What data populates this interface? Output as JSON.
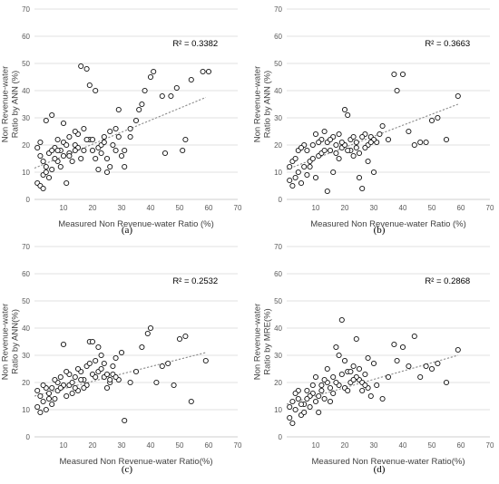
{
  "chart_data": [
    {
      "type": "scatter",
      "panel_label": "(a)",
      "r2_text": "R² = 0.3382",
      "xlabel": "Measured Non Revenue-water Ratio (%)",
      "ylabel_line1": "Non Revenue-water",
      "ylabel_line2": "Ratio by ANN (%)",
      "xlim": [
        0,
        70
      ],
      "ylim": [
        0,
        70
      ],
      "xticks": [
        10,
        20,
        30,
        40,
        50,
        60,
        70
      ],
      "yticks": [
        0,
        10,
        20,
        30,
        40,
        50,
        60,
        70
      ],
      "grid": "horizontal",
      "trend": {
        "x": [
          0,
          59
        ],
        "y": [
          11.5,
          37.5
        ]
      },
      "points": [
        [
          1,
          6
        ],
        [
          2,
          5
        ],
        [
          3,
          4
        ],
        [
          3,
          9
        ],
        [
          4,
          12
        ],
        [
          5,
          17
        ],
        [
          6,
          11
        ],
        [
          7,
          19
        ],
        [
          8,
          14
        ],
        [
          9,
          18
        ],
        [
          10,
          21
        ],
        [
          11,
          6
        ],
        [
          12,
          17
        ],
        [
          14,
          20
        ],
        [
          15,
          24
        ],
        [
          16,
          49
        ],
        [
          18,
          48
        ],
        [
          19,
          42
        ],
        [
          21,
          40
        ],
        [
          22,
          19
        ],
        [
          23,
          17
        ],
        [
          25,
          10
        ],
        [
          26,
          25
        ],
        [
          28,
          26
        ],
        [
          29,
          33
        ],
        [
          31,
          12
        ],
        [
          33,
          23
        ],
        [
          35,
          29
        ],
        [
          37,
          35
        ],
        [
          38,
          40
        ],
        [
          40,
          45
        ],
        [
          41,
          47
        ],
        [
          44,
          38
        ],
        [
          45,
          17
        ],
        [
          47,
          38
        ],
        [
          49,
          41
        ],
        [
          51,
          18
        ],
        [
          52,
          22
        ],
        [
          54,
          44
        ],
        [
          58,
          47
        ],
        [
          60,
          47
        ],
        [
          2,
          21
        ],
        [
          4,
          29
        ],
        [
          6,
          31
        ],
        [
          8,
          18
        ],
        [
          10,
          28
        ],
        [
          12,
          16
        ],
        [
          14,
          25
        ],
        [
          17,
          18
        ],
        [
          19,
          22
        ],
        [
          21,
          15
        ],
        [
          23,
          20
        ],
        [
          24,
          21
        ],
        [
          27,
          20
        ],
        [
          29,
          23
        ],
        [
          31,
          18
        ],
        [
          33,
          26
        ],
        [
          36,
          33
        ],
        [
          1,
          19
        ],
        [
          3,
          14
        ],
        [
          5,
          8
        ],
        [
          7,
          15
        ],
        [
          9,
          12
        ],
        [
          11,
          20
        ],
        [
          13,
          14
        ],
        [
          15,
          19
        ],
        [
          17,
          26
        ],
        [
          20,
          22
        ],
        [
          22,
          11
        ],
        [
          25,
          15
        ],
        [
          28,
          18
        ],
        [
          2,
          16
        ],
        [
          4,
          10
        ],
        [
          6,
          18
        ],
        [
          8,
          22
        ],
        [
          10,
          16
        ],
        [
          12,
          23
        ],
        [
          14,
          18
        ],
        [
          16,
          15
        ],
        [
          18,
          22
        ],
        [
          20,
          18
        ],
        [
          24,
          23
        ],
        [
          26,
          12
        ],
        [
          30,
          16
        ]
      ]
    },
    {
      "type": "scatter",
      "panel_label": "(b)",
      "r2_text": "R² = 0.3663",
      "xlabel": "Measured Non Revenue-water Ratio (%)",
      "ylabel_line1": "Non Revenue-water",
      "ylabel_line2": "Ratio by ANN (%)",
      "xlim": [
        0,
        70
      ],
      "ylim": [
        0,
        70
      ],
      "xticks": [
        10,
        20,
        30,
        40,
        50,
        60,
        70
      ],
      "yticks": [
        0,
        10,
        20,
        30,
        40,
        50,
        60,
        70
      ],
      "grid": "horizontal",
      "trend": {
        "x": [
          0,
          59
        ],
        "y": [
          11,
          35
        ]
      },
      "points": [
        [
          1,
          7
        ],
        [
          2,
          5
        ],
        [
          3,
          8
        ],
        [
          4,
          10
        ],
        [
          5,
          6
        ],
        [
          6,
          12
        ],
        [
          7,
          18
        ],
        [
          8,
          14
        ],
        [
          9,
          20
        ],
        [
          10,
          8
        ],
        [
          11,
          16
        ],
        [
          12,
          22
        ],
        [
          13,
          25
        ],
        [
          14,
          3
        ],
        [
          15,
          18
        ],
        [
          16,
          10
        ],
        [
          17,
          20
        ],
        [
          18,
          24
        ],
        [
          19,
          19
        ],
        [
          20,
          33
        ],
        [
          21,
          31
        ],
        [
          22,
          18
        ],
        [
          23,
          16
        ],
        [
          24,
          21
        ],
        [
          25,
          8
        ],
        [
          26,
          4
        ],
        [
          27,
          24
        ],
        [
          28,
          14
        ],
        [
          29,
          23
        ],
        [
          30,
          10
        ],
        [
          31,
          21
        ],
        [
          33,
          27
        ],
        [
          35,
          22
        ],
        [
          37,
          46
        ],
        [
          38,
          40
        ],
        [
          40,
          46
        ],
        [
          42,
          25
        ],
        [
          44,
          20
        ],
        [
          46,
          21
        ],
        [
          48,
          21
        ],
        [
          50,
          29
        ],
        [
          52,
          30
        ],
        [
          55,
          22
        ],
        [
          59,
          38
        ],
        [
          2,
          14
        ],
        [
          4,
          18
        ],
        [
          6,
          20
        ],
        [
          8,
          12
        ],
        [
          10,
          24
        ],
        [
          12,
          17
        ],
        [
          14,
          21
        ],
        [
          16,
          23
        ],
        [
          18,
          15
        ],
        [
          20,
          20
        ],
        [
          22,
          22
        ],
        [
          24,
          19
        ],
        [
          26,
          23
        ],
        [
          28,
          20
        ],
        [
          30,
          22
        ],
        [
          32,
          24
        ],
        [
          1,
          12
        ],
        [
          3,
          15
        ],
        [
          5,
          19
        ],
        [
          7,
          9
        ],
        [
          9,
          15
        ],
        [
          11,
          21
        ],
        [
          13,
          18
        ],
        [
          15,
          22
        ],
        [
          17,
          17
        ],
        [
          19,
          21
        ],
        [
          21,
          18
        ],
        [
          23,
          23
        ],
        [
          25,
          17
        ],
        [
          27,
          19
        ],
        [
          29,
          21
        ]
      ]
    },
    {
      "type": "scatter",
      "panel_label": "(c)",
      "r2_text": "R² = 0.2532",
      "xlabel": "Measured Non Revenue-water Ratio(%)",
      "ylabel_line1": "Non Revenue-water",
      "ylabel_line2": "Ratio by ANN(%)",
      "xlim": [
        0,
        70
      ],
      "ylim": [
        0,
        70
      ],
      "xticks": [
        10,
        20,
        30,
        40,
        50,
        60,
        70
      ],
      "yticks": [
        0,
        10,
        20,
        30,
        40,
        50,
        60,
        70
      ],
      "grid": "horizontal",
      "trend": {
        "x": [
          0,
          59
        ],
        "y": [
          15,
          31
        ]
      },
      "points": [
        [
          1,
          11
        ],
        [
          2,
          9
        ],
        [
          3,
          13
        ],
        [
          4,
          10
        ],
        [
          5,
          16
        ],
        [
          6,
          18
        ],
        [
          7,
          14
        ],
        [
          8,
          17
        ],
        [
          9,
          22
        ],
        [
          10,
          34
        ],
        [
          11,
          15
        ],
        [
          12,
          19
        ],
        [
          13,
          20
        ],
        [
          14,
          22
        ],
        [
          15,
          17
        ],
        [
          16,
          24
        ],
        [
          17,
          21
        ],
        [
          18,
          26
        ],
        [
          19,
          35
        ],
        [
          20,
          35
        ],
        [
          21,
          28
        ],
        [
          22,
          33
        ],
        [
          23,
          30
        ],
        [
          24,
          22
        ],
        [
          25,
          18
        ],
        [
          26,
          20
        ],
        [
          27,
          23
        ],
        [
          28,
          29
        ],
        [
          29,
          21
        ],
        [
          30,
          31
        ],
        [
          31,
          6
        ],
        [
          33,
          20
        ],
        [
          35,
          24
        ],
        [
          37,
          33
        ],
        [
          39,
          38
        ],
        [
          40,
          40
        ],
        [
          42,
          20
        ],
        [
          44,
          26
        ],
        [
          46,
          27
        ],
        [
          48,
          19
        ],
        [
          50,
          36
        ],
        [
          52,
          37
        ],
        [
          54,
          13
        ],
        [
          59,
          28
        ],
        [
          2,
          15
        ],
        [
          4,
          18
        ],
        [
          6,
          12
        ],
        [
          8,
          20
        ],
        [
          10,
          19
        ],
        [
          12,
          23
        ],
        [
          14,
          18
        ],
        [
          16,
          21
        ],
        [
          18,
          19
        ],
        [
          20,
          23
        ],
        [
          22,
          24
        ],
        [
          24,
          27
        ],
        [
          26,
          21
        ],
        [
          28,
          22
        ],
        [
          1,
          17
        ],
        [
          3,
          19
        ],
        [
          5,
          14
        ],
        [
          7,
          21
        ],
        [
          9,
          18
        ],
        [
          11,
          24
        ],
        [
          13,
          16
        ],
        [
          15,
          25
        ],
        [
          17,
          18
        ],
        [
          19,
          27
        ],
        [
          21,
          22
        ],
        [
          23,
          25
        ],
        [
          25,
          23
        ],
        [
          27,
          26
        ]
      ]
    },
    {
      "type": "scatter",
      "panel_label": "(d)",
      "r2_text": "R² = 0.2868",
      "xlabel": "Measured Non Revenue-water Ratio(%)",
      "ylabel_line1": "Non Revenue-water",
      "ylabel_line2": "Ratio by MRE(%)",
      "xlim": [
        0,
        70
      ],
      "ylim": [
        0,
        70
      ],
      "xticks": [
        10,
        20,
        30,
        40,
        50,
        60,
        70
      ],
      "yticks": [
        0,
        10,
        20,
        30,
        40,
        50,
        60,
        70
      ],
      "grid": "horizontal",
      "trend": {
        "x": [
          0,
          59
        ],
        "y": [
          12,
          30
        ]
      },
      "points": [
        [
          1,
          7
        ],
        [
          2,
          5
        ],
        [
          3,
          10
        ],
        [
          4,
          14
        ],
        [
          5,
          8
        ],
        [
          6,
          12
        ],
        [
          7,
          17
        ],
        [
          8,
          11
        ],
        [
          9,
          16
        ],
        [
          10,
          22
        ],
        [
          11,
          9
        ],
        [
          12,
          19
        ],
        [
          13,
          14
        ],
        [
          14,
          25
        ],
        [
          15,
          18
        ],
        [
          16,
          22
        ],
        [
          17,
          33
        ],
        [
          18,
          30
        ],
        [
          19,
          43
        ],
        [
          20,
          28
        ],
        [
          21,
          24
        ],
        [
          22,
          20
        ],
        [
          23,
          26
        ],
        [
          24,
          36
        ],
        [
          25,
          21
        ],
        [
          26,
          17
        ],
        [
          27,
          23
        ],
        [
          28,
          29
        ],
        [
          29,
          15
        ],
        [
          30,
          27
        ],
        [
          31,
          19
        ],
        [
          33,
          14
        ],
        [
          35,
          22
        ],
        [
          37,
          34
        ],
        [
          38,
          28
        ],
        [
          40,
          33
        ],
        [
          42,
          26
        ],
        [
          44,
          37
        ],
        [
          46,
          22
        ],
        [
          48,
          26
        ],
        [
          50,
          25
        ],
        [
          52,
          27
        ],
        [
          55,
          20
        ],
        [
          59,
          32
        ],
        [
          2,
          13
        ],
        [
          4,
          17
        ],
        [
          6,
          9
        ],
        [
          8,
          15
        ],
        [
          10,
          13
        ],
        [
          12,
          17
        ],
        [
          14,
          20
        ],
        [
          16,
          16
        ],
        [
          18,
          19
        ],
        [
          20,
          18
        ],
        [
          22,
          24
        ],
        [
          24,
          22
        ],
        [
          26,
          20
        ],
        [
          28,
          18
        ],
        [
          1,
          11
        ],
        [
          3,
          16
        ],
        [
          5,
          12
        ],
        [
          7,
          14
        ],
        [
          9,
          19
        ],
        [
          11,
          15
        ],
        [
          13,
          21
        ],
        [
          15,
          13
        ],
        [
          17,
          20
        ],
        [
          19,
          23
        ],
        [
          21,
          17
        ],
        [
          23,
          21
        ],
        [
          25,
          25
        ],
        [
          27,
          19
        ]
      ]
    }
  ]
}
